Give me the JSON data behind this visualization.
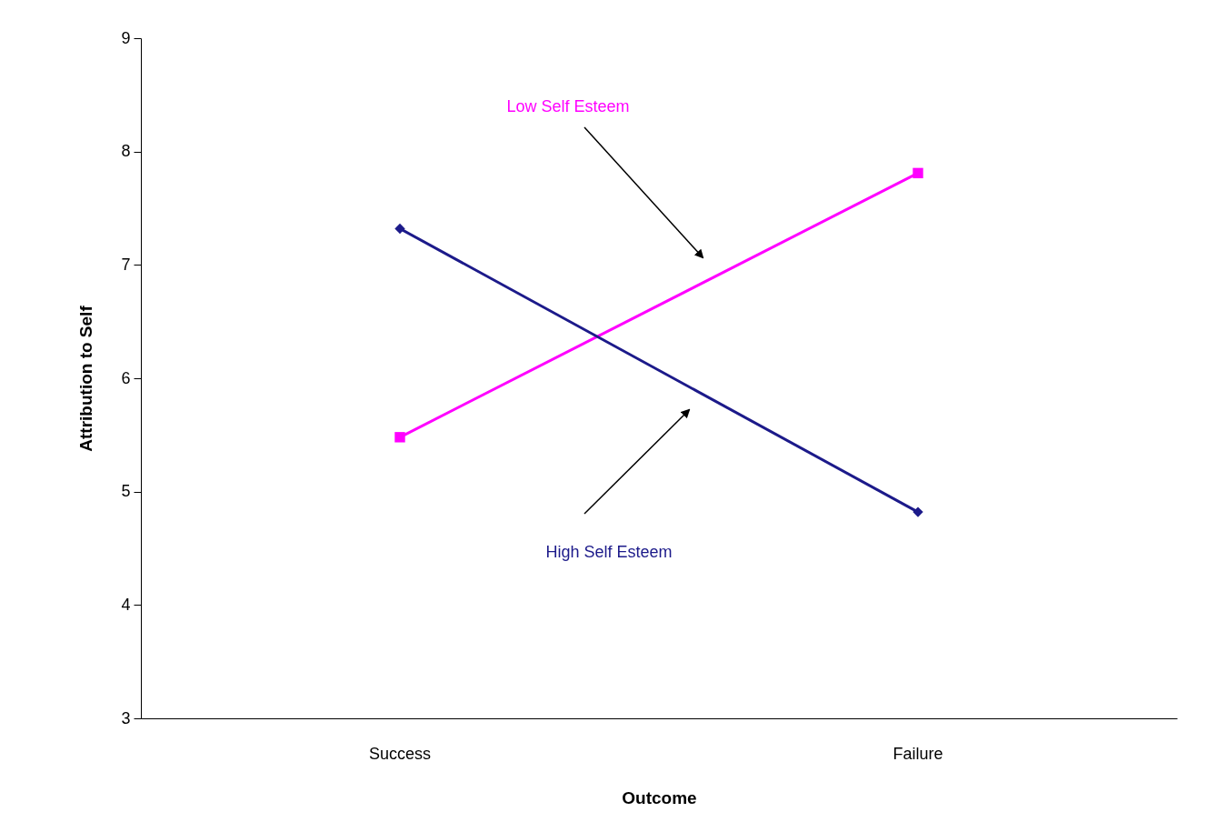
{
  "chart_data": {
    "type": "line",
    "xlabel": "Outcome",
    "ylabel": "Attribution to Self",
    "categories": [
      "Success",
      "Failure"
    ],
    "series": [
      {
        "name": "Low Self Esteem",
        "color": "#ff00ff",
        "marker": "square",
        "values": [
          5.48,
          7.81
        ]
      },
      {
        "name": "High Self Esteem",
        "color": "#1c1a8a",
        "marker": "diamond",
        "values": [
          7.32,
          4.82
        ]
      }
    ],
    "ylim": [
      3,
      9
    ],
    "yticks": [
      3,
      4,
      5,
      6,
      7,
      8,
      9
    ],
    "grid": false
  }
}
